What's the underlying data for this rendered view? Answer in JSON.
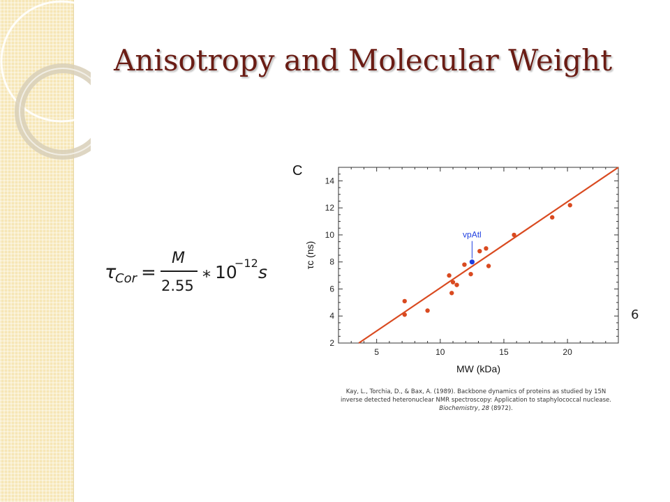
{
  "slide": {
    "title": "Anisotropy and Molecular Weight",
    "slide_number": "6",
    "formula": {
      "lhs_symbol": "τ",
      "lhs_subscript": "Cor",
      "equals": "=",
      "numerator": "M",
      "denominator": "2.55",
      "operator": "*",
      "base": "10",
      "exponent": "−12",
      "unit": "s"
    },
    "citation": {
      "line1": "Kay, L., Torchia, D., & Bax, A. (1989). Backbone dynamics of proteins as studied by 15N",
      "line2": "inverse detected heteronuclear NMR spectroscopy: Application to staphylococcal nuclease.",
      "journal": "Biochemistry",
      "volume": "28",
      "pages": "(8972)."
    }
  },
  "colors": {
    "title": "#6a1c14",
    "sidebar": "#f6e6b6",
    "points": "#d94a20",
    "fit_line": "#d94a20",
    "highlight": "#1f3fe0"
  },
  "chart_data": {
    "type": "scatter",
    "panel_label": "C",
    "xlabel": "MW (kDa)",
    "ylabel": "τc (ns)",
    "xlim": [
      2,
      24
    ],
    "ylim": [
      2,
      15
    ],
    "xticks": [
      5,
      10,
      15,
      20
    ],
    "yticks": [
      2,
      4,
      6,
      8,
      10,
      12,
      14
    ],
    "grid": false,
    "series": [
      {
        "points": [
          {
            "x": 7.2,
            "y": 5.1
          },
          {
            "x": 7.2,
            "y": 4.1
          },
          {
            "x": 9.0,
            "y": 4.4
          },
          {
            "x": 10.7,
            "y": 7.0
          },
          {
            "x": 10.9,
            "y": 5.7
          },
          {
            "x": 11.0,
            "y": 6.5
          },
          {
            "x": 11.3,
            "y": 6.3
          },
          {
            "x": 11.9,
            "y": 7.8
          },
          {
            "x": 12.4,
            "y": 7.1
          },
          {
            "x": 13.1,
            "y": 8.8
          },
          {
            "x": 13.6,
            "y": 9.0
          },
          {
            "x": 13.8,
            "y": 7.7
          },
          {
            "x": 15.8,
            "y": 10.0
          },
          {
            "x": 18.8,
            "y": 11.3
          },
          {
            "x": 20.2,
            "y": 12.2
          }
        ]
      }
    ],
    "fit_line": {
      "x": [
        3.6,
        24.0
      ],
      "y": [
        2.0,
        15.0
      ]
    },
    "highlight": {
      "label": "vpAtl",
      "x": 12.5,
      "y": 8.0
    }
  }
}
